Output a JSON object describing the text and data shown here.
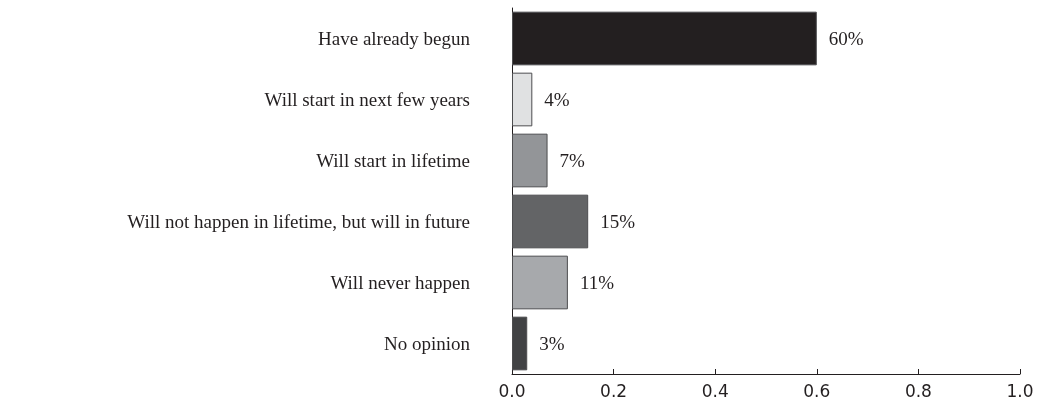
{
  "chart_data": {
    "type": "bar",
    "orientation": "horizontal",
    "categories": [
      "Have already begun",
      "Will start in next few years",
      "Will start in lifetime",
      "Will not happen in lifetime, but will in future",
      "Will never happen",
      "No opinion"
    ],
    "values": [
      0.6,
      0.04,
      0.07,
      0.15,
      0.11,
      0.03
    ],
    "colors": [
      "#231f20",
      "#e0e1e2",
      "#939598",
      "#636466",
      "#a7a9ac",
      "#414244"
    ],
    "value_labels": [
      "60%",
      "4%",
      "7%",
      "15%",
      "11%",
      "3%"
    ],
    "xlim": [
      0,
      1
    ],
    "xticks": [
      {
        "value": 0,
        "label": "0.0"
      },
      {
        "value": 0.2,
        "label": "0.2"
      },
      {
        "value": 0.4,
        "label": "0.4"
      },
      {
        "value": 0.6,
        "label": "0.6"
      },
      {
        "value": 0.8,
        "label": "0.8"
      },
      {
        "value": 1,
        "label": "1.0"
      }
    ],
    "grid": false
  }
}
